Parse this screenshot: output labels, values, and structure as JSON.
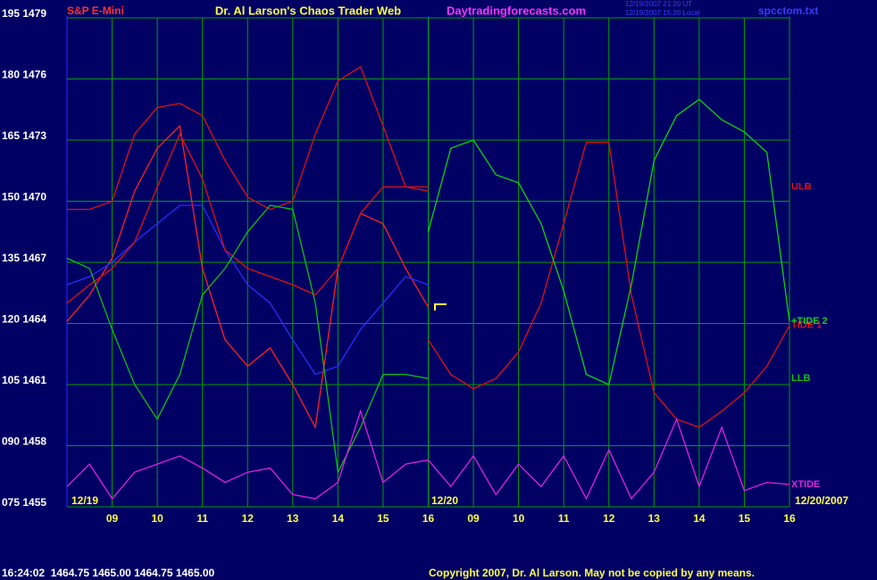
{
  "header": {
    "symbol": "S&P E-Mini",
    "title": "Dr. Al Larson's Chaos Trader Web",
    "site": "Daytradingforecasts.com",
    "timestamps": [
      "12/19/2007 21:20 UT",
      "12/19/2007 15:20 Local"
    ],
    "file": "spcctom.txt"
  },
  "footer": {
    "quote": "16:24:02  1464.75 1465.00 1464.75 1465.00",
    "copyright": "Copyright 2007, Dr. Al Larson. May not be copied by any means."
  },
  "chart_data": {
    "type": "line",
    "date_labels": [
      "12/19",
      "12/20",
      "12/20/2007"
    ],
    "categories": [
      null,
      null,
      "09",
      null,
      "10",
      null,
      "11",
      null,
      "12",
      null,
      "13",
      null,
      "14",
      null,
      "15",
      null,
      "16",
      null,
      "09",
      null,
      "10",
      null,
      "11",
      null,
      "12",
      null,
      "13",
      null,
      "14",
      null,
      "15",
      null,
      "16"
    ],
    "ylim": [
      1455,
      1479
    ],
    "yticks": [
      {
        "value": 1479,
        "label": "195 1479"
      },
      {
        "value": 1476,
        "label": "180 1476"
      },
      {
        "value": 1473,
        "label": "165 1473"
      },
      {
        "value": 1470,
        "label": "150 1470"
      },
      {
        "value": 1467,
        "label": "135 1467"
      },
      {
        "value": 1464,
        "label": "120 1464"
      },
      {
        "value": 1461,
        "label": "105 1461"
      },
      {
        "value": 1458,
        "label": "090 1458"
      },
      {
        "value": 1455,
        "label": "075 1455"
      }
    ],
    "grid": true,
    "grid_color": "#00a000",
    "series": [
      {
        "color": "#ff2020",
        "values": [
          1464.1,
          1465.4,
          1467.2,
          1470.5,
          1472.6,
          1473.7,
          1466.7,
          1463.2,
          1461.9,
          1462.8,
          1461.0,
          1458.9,
          1466.7,
          1469.4,
          1468.9,
          1466.7,
          1464.8,
          null,
          null,
          null,
          null,
          null,
          null,
          null,
          null,
          null,
          null,
          null,
          null,
          null,
          null,
          null,
          null
        ]
      },
      {
        "color": "#2a2aff",
        "values": [
          1465.9,
          1466.3,
          1467.0,
          1468.0,
          1468.9,
          1469.8,
          1469.8,
          1467.6,
          1465.9,
          1465.0,
          1463.2,
          1461.5,
          1461.9,
          1463.7,
          1465.0,
          1466.3,
          1465.9,
          null,
          null,
          null,
          null,
          null,
          null,
          null,
          null,
          null,
          null,
          null,
          null,
          null,
          null,
          null,
          null
        ]
      },
      {
        "name": "ULB",
        "color": "#e01010",
        "values": [
          1469.6,
          1469.6,
          1470.0,
          1473.3,
          1474.6,
          1474.8,
          1474.2,
          1472.0,
          1470.2,
          1469.6,
          1470.0,
          1473.3,
          1475.9,
          1476.6,
          1473.7,
          1470.7,
          1470.7,
          null,
          null,
          null,
          null,
          null,
          null,
          null,
          null,
          null,
          null,
          null,
          null,
          null,
          null,
          null,
          null
        ]
      },
      {
        "color": "#e01010",
        "values": [
          1465.0,
          1465.9,
          1466.7,
          1468.0,
          1470.7,
          1473.3,
          1471.1,
          1467.6,
          1466.7,
          1466.3,
          1465.9,
          1465.4,
          1466.7,
          1469.4,
          1470.7,
          1470.7,
          1470.5,
          null,
          null,
          null,
          null,
          null,
          null,
          null,
          null,
          null,
          null,
          null,
          null,
          null,
          null,
          null,
          null
        ]
      },
      {
        "name": "LLB",
        "color": "#10c010",
        "values": [
          1467.2,
          1466.7,
          1463.7,
          1461.0,
          1459.3,
          1461.5,
          1465.4,
          1466.7,
          1468.5,
          1469.8,
          1469.6,
          1465.0,
          1456.7,
          1458.9,
          1461.5,
          1461.5,
          1461.3,
          null,
          null,
          null,
          null,
          null,
          null,
          null,
          null,
          null,
          null,
          null,
          null,
          null,
          null,
          null,
          null
        ]
      },
      {
        "name": "TIDE 1",
        "color": "#e01010",
        "values": [
          null,
          null,
          null,
          null,
          null,
          null,
          null,
          null,
          null,
          null,
          null,
          null,
          null,
          null,
          null,
          null,
          1463.2,
          1461.5,
          1460.8,
          1461.3,
          1462.6,
          1465.0,
          1468.9,
          1472.9,
          1472.9,
          1465.4,
          1460.6,
          1459.3,
          1458.9,
          1459.7,
          1460.6,
          1461.9,
          1463.9
        ]
      },
      {
        "name": "+TIDE 2",
        "color": "#10d010",
        "values": [
          null,
          null,
          null,
          null,
          null,
          null,
          null,
          null,
          null,
          null,
          null,
          null,
          null,
          null,
          null,
          null,
          1468.5,
          1472.6,
          1473.0,
          1471.3,
          1470.9,
          1468.9,
          1465.6,
          1461.5,
          1461.0,
          1465.9,
          1472.0,
          1474.2,
          1475.0,
          1474.0,
          1473.4,
          1472.4,
          1464.1
        ]
      },
      {
        "name": "XTIDE",
        "color": "#e020e0",
        "values": [
          1456.0,
          1457.1,
          1455.4,
          1456.7,
          1457.1,
          1457.5,
          1456.9,
          1456.2,
          1456.7,
          1456.9,
          1455.6,
          1455.4,
          1456.2,
          1459.7,
          1456.2,
          1457.1,
          1457.3,
          1456.0,
          1457.5,
          1455.6,
          1457.1,
          1456.0,
          1457.5,
          1455.4,
          1457.8,
          1455.4,
          1456.7,
          1459.3,
          1456.0,
          1458.9,
          1455.8,
          1456.2,
          1456.1
        ]
      }
    ]
  }
}
